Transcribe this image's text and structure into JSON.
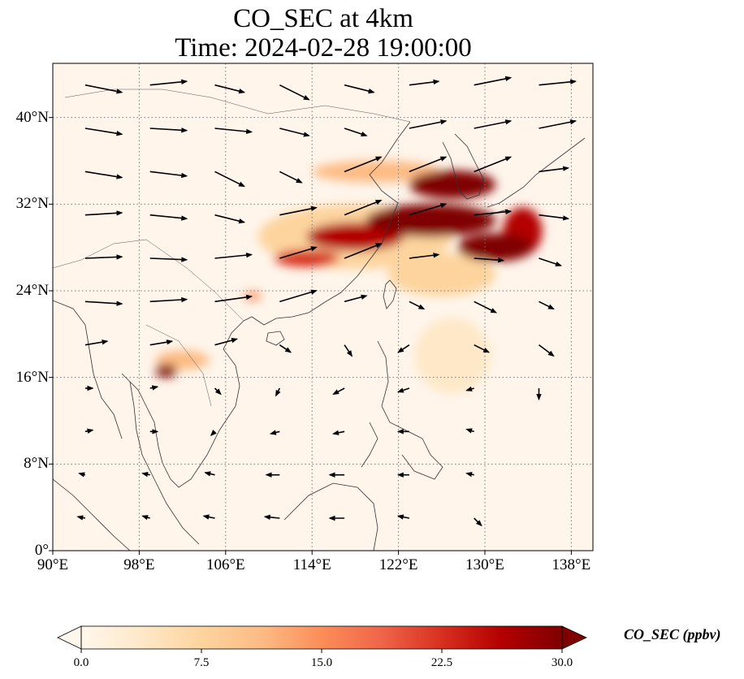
{
  "title": {
    "line1": "CO_SEC at 4km",
    "line2": "Time: 2024-02-28 19:00:00"
  },
  "map": {
    "lon_range": [
      90,
      140
    ],
    "lat_range": [
      0,
      45
    ],
    "lat_ticks": [
      {
        "value": 0,
        "label": "0°"
      },
      {
        "value": 8,
        "label": "8°N"
      },
      {
        "value": 16,
        "label": "16°N"
      },
      {
        "value": 24,
        "label": "24°N"
      },
      {
        "value": 32,
        "label": "32°N"
      },
      {
        "value": 40,
        "label": "40°N"
      }
    ],
    "lon_ticks": [
      {
        "value": 90,
        "label": "90°E"
      },
      {
        "value": 98,
        "label": "98°E"
      },
      {
        "value": 106,
        "label": "106°E"
      },
      {
        "value": 114,
        "label": "114°E"
      },
      {
        "value": 122,
        "label": "122°E"
      },
      {
        "value": 130,
        "label": "130°E"
      },
      {
        "value": 138,
        "label": "138°E"
      }
    ],
    "gridlines": true,
    "background_color": "#fff5eb"
  },
  "colorbar": {
    "label": "CO_SEC (ppbv)",
    "range": [
      0,
      30
    ],
    "extend": "both",
    "ticks": [
      {
        "value": 0,
        "label": "0.0"
      },
      {
        "value": 7.5,
        "label": "7.5"
      },
      {
        "value": 15,
        "label": "15.0"
      },
      {
        "value": 22.5,
        "label": "22.5"
      },
      {
        "value": 30,
        "label": "30.0"
      }
    ],
    "colormap": "OrRd",
    "stops": [
      "#fff7ec",
      "#fee8c8",
      "#fdd49e",
      "#fdbb84",
      "#fc8d59",
      "#ef6548",
      "#d7301f",
      "#b30000",
      "#7f0000"
    ]
  },
  "plumes": [
    {
      "lon": 100.5,
      "lat": 16.6,
      "rlon": 1.0,
      "rlat": 0.6,
      "value": 30
    },
    {
      "lon": 102.0,
      "lat": 17.6,
      "rlon": 2.5,
      "rlat": 0.9,
      "value": 12
    },
    {
      "lon": 108.5,
      "lat": 23.5,
      "rlon": 0.8,
      "rlat": 0.4,
      "value": 14
    },
    {
      "lon": 113.5,
      "lat": 27.0,
      "rlon": 3.0,
      "rlat": 0.8,
      "value": 22
    },
    {
      "lon": 118.0,
      "lat": 29.0,
      "rlon": 4.5,
      "rlat": 1.3,
      "value": 28
    },
    {
      "lon": 125.0,
      "lat": 30.5,
      "rlon": 6.0,
      "rlat": 1.5,
      "value": 30
    },
    {
      "lon": 127.0,
      "lat": 33.8,
      "rlon": 4.0,
      "rlat": 1.3,
      "value": 30
    },
    {
      "lon": 131.0,
      "lat": 28.0,
      "rlon": 3.5,
      "rlat": 1.3,
      "value": 30
    },
    {
      "lon": 133.5,
      "lat": 29.5,
      "rlon": 1.8,
      "rlat": 2.2,
      "value": 28
    },
    {
      "lon": 120.0,
      "lat": 35.0,
      "rlon": 6.0,
      "rlat": 1.0,
      "value": 10
    },
    {
      "lon": 118.0,
      "lat": 29.0,
      "rlon": 9.0,
      "rlat": 3.0,
      "value": 7
    },
    {
      "lon": 126.0,
      "lat": 25.5,
      "rlon": 5.0,
      "rlat": 2.0,
      "value": 6
    },
    {
      "lon": 127.0,
      "lat": 18.0,
      "rlon": 3.5,
      "rlat": 3.5,
      "value": 4
    }
  ],
  "wind_vectors": [
    {
      "lon": 93,
      "lat": 43,
      "u": 5,
      "v": -1
    },
    {
      "lon": 99,
      "lat": 43,
      "u": 5,
      "v": 0.5
    },
    {
      "lon": 105,
      "lat": 43,
      "u": 4,
      "v": -1
    },
    {
      "lon": 111,
      "lat": 43,
      "u": 4,
      "v": -2
    },
    {
      "lon": 117,
      "lat": 43,
      "u": 4,
      "v": -1
    },
    {
      "lon": 123,
      "lat": 43,
      "u": 4,
      "v": 0.5
    },
    {
      "lon": 129,
      "lat": 43,
      "u": 5,
      "v": 1
    },
    {
      "lon": 135,
      "lat": 43,
      "u": 5,
      "v": 0.5
    },
    {
      "lon": 93,
      "lat": 39,
      "u": 5,
      "v": -0.8
    },
    {
      "lon": 99,
      "lat": 39,
      "u": 5,
      "v": -0.3
    },
    {
      "lon": 105,
      "lat": 39,
      "u": 5,
      "v": -0.5
    },
    {
      "lon": 111,
      "lat": 39,
      "u": 4,
      "v": -1
    },
    {
      "lon": 117,
      "lat": 39,
      "u": 3,
      "v": -1
    },
    {
      "lon": 123,
      "lat": 39,
      "u": 5,
      "v": 1
    },
    {
      "lon": 129,
      "lat": 39,
      "u": 5,
      "v": 1
    },
    {
      "lon": 135,
      "lat": 39,
      "u": 5,
      "v": 1
    },
    {
      "lon": 93,
      "lat": 35,
      "u": 5,
      "v": -0.8
    },
    {
      "lon": 99,
      "lat": 35,
      "u": 5,
      "v": -0.6
    },
    {
      "lon": 105,
      "lat": 35,
      "u": 4,
      "v": -2
    },
    {
      "lon": 111,
      "lat": 35,
      "u": 3,
      "v": -1.5
    },
    {
      "lon": 117,
      "lat": 35,
      "u": 5,
      "v": 2
    },
    {
      "lon": 123,
      "lat": 35,
      "u": 5,
      "v": 2
    },
    {
      "lon": 129,
      "lat": 35,
      "u": 5,
      "v": 2
    },
    {
      "lon": 135,
      "lat": 35,
      "u": 4,
      "v": 0.5
    },
    {
      "lon": 93,
      "lat": 31,
      "u": 5,
      "v": 0.3
    },
    {
      "lon": 99,
      "lat": 31,
      "u": 5,
      "v": -0.5
    },
    {
      "lon": 105,
      "lat": 31,
      "u": 4,
      "v": -1
    },
    {
      "lon": 111,
      "lat": 31,
      "u": 5,
      "v": 1
    },
    {
      "lon": 117,
      "lat": 31,
      "u": 5,
      "v": 2
    },
    {
      "lon": 123,
      "lat": 31,
      "u": 5,
      "v": 1.5
    },
    {
      "lon": 129,
      "lat": 31,
      "u": 5,
      "v": 0.5
    },
    {
      "lon": 135,
      "lat": 31,
      "u": 4,
      "v": -0.5
    },
    {
      "lon": 93,
      "lat": 27,
      "u": 5,
      "v": 0.2
    },
    {
      "lon": 99,
      "lat": 27,
      "u": 5,
      "v": -0.2
    },
    {
      "lon": 105,
      "lat": 27,
      "u": 5,
      "v": 0.5
    },
    {
      "lon": 111,
      "lat": 27,
      "u": 5,
      "v": 1.5
    },
    {
      "lon": 117,
      "lat": 27,
      "u": 5,
      "v": 2
    },
    {
      "lon": 123,
      "lat": 27,
      "u": 4,
      "v": 0.5
    },
    {
      "lon": 129,
      "lat": 27,
      "u": 4,
      "v": -0.3
    },
    {
      "lon": 135,
      "lat": 27,
      "u": 3,
      "v": -1
    },
    {
      "lon": 93,
      "lat": 23,
      "u": 5,
      "v": -0.3
    },
    {
      "lon": 99,
      "lat": 23,
      "u": 5,
      "v": 0.3
    },
    {
      "lon": 105,
      "lat": 23,
      "u": 5,
      "v": 0.7
    },
    {
      "lon": 111,
      "lat": 23,
      "u": 5,
      "v": 1.5
    },
    {
      "lon": 117,
      "lat": 23,
      "u": 3,
      "v": 0.8
    },
    {
      "lon": 123,
      "lat": 23,
      "u": 2,
      "v": -1
    },
    {
      "lon": 129,
      "lat": 23,
      "u": 3,
      "v": -1.5
    },
    {
      "lon": 135,
      "lat": 23,
      "u": 2,
      "v": -1
    },
    {
      "lon": 93,
      "lat": 19,
      "u": 3,
      "v": 0.5
    },
    {
      "lon": 99,
      "lat": 19,
      "u": 3,
      "v": 0.5
    },
    {
      "lon": 105,
      "lat": 19,
      "u": 3,
      "v": 0.8
    },
    {
      "lon": 111,
      "lat": 19,
      "u": 1.5,
      "v": -1
    },
    {
      "lon": 117,
      "lat": 19,
      "u": 1,
      "v": -1.5
    },
    {
      "lon": 123,
      "lat": 19,
      "u": -1.5,
      "v": -1
    },
    {
      "lon": 129,
      "lat": 19,
      "u": 2,
      "v": -1
    },
    {
      "lon": 135,
      "lat": 19,
      "u": 2,
      "v": -1.5
    },
    {
      "lon": 93,
      "lat": 15,
      "u": 1,
      "v": 0
    },
    {
      "lon": 99,
      "lat": 15,
      "u": 1,
      "v": 0.2
    },
    {
      "lon": 105,
      "lat": 15,
      "u": 0.8,
      "v": -0.8
    },
    {
      "lon": 111,
      "lat": 15,
      "u": -0.5,
      "v": -1
    },
    {
      "lon": 117,
      "lat": 15,
      "u": -1.5,
      "v": -0.8
    },
    {
      "lon": 123,
      "lat": 15,
      "u": -1.5,
      "v": -0.5
    },
    {
      "lon": 129,
      "lat": 15,
      "u": -1,
      "v": -0.3
    },
    {
      "lon": 135,
      "lat": 15,
      "u": 0,
      "v": -1.5
    },
    {
      "lon": 93,
      "lat": 11,
      "u": 1,
      "v": 0.2
    },
    {
      "lon": 99,
      "lat": 11,
      "u": 1,
      "v": 0
    },
    {
      "lon": 105,
      "lat": 11,
      "u": -0.5,
      "v": -0.5
    },
    {
      "lon": 111,
      "lat": 11,
      "u": -1.2,
      "v": -0.3
    },
    {
      "lon": 117,
      "lat": 11,
      "u": -1.5,
      "v": -0.3
    },
    {
      "lon": 123,
      "lat": 11,
      "u": -1.5,
      "v": 0
    },
    {
      "lon": 129,
      "lat": 11,
      "u": -1,
      "v": 0.3
    },
    {
      "lon": 93,
      "lat": 7,
      "u": -0.8,
      "v": 0.2
    },
    {
      "lon": 99,
      "lat": 7,
      "u": -1,
      "v": 0.2
    },
    {
      "lon": 105,
      "lat": 7,
      "u": -1.3,
      "v": 0.3
    },
    {
      "lon": 111,
      "lat": 7,
      "u": -1.8,
      "v": 0
    },
    {
      "lon": 117,
      "lat": 7,
      "u": -2,
      "v": 0
    },
    {
      "lon": 123,
      "lat": 7,
      "u": -1.5,
      "v": 0
    },
    {
      "lon": 129,
      "lat": 7,
      "u": -1,
      "v": 0.2
    },
    {
      "lon": 93,
      "lat": 3,
      "u": -1,
      "v": 0.2
    },
    {
      "lon": 99,
      "lat": 3,
      "u": -1,
      "v": 0.3
    },
    {
      "lon": 105,
      "lat": 3,
      "u": -1.5,
      "v": 0.3
    },
    {
      "lon": 111,
      "lat": 3,
      "u": -2,
      "v": 0.2
    },
    {
      "lon": 117,
      "lat": 3,
      "u": -2,
      "v": 0
    },
    {
      "lon": 123,
      "lat": 3,
      "u": -1.5,
      "v": 0.3
    },
    {
      "lon": 129,
      "lat": 3,
      "u": 1,
      "v": -1
    }
  ]
}
